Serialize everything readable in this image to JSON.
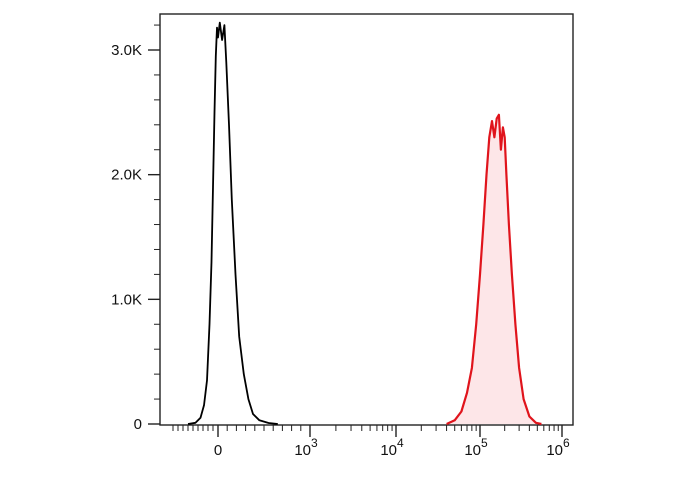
{
  "chart_data": {
    "type": "area",
    "title": "",
    "xlabel": "",
    "ylabel": "",
    "x_scale": "biexponential",
    "xlim": [
      -1000,
      1000000
    ],
    "ylim": [
      0,
      3300
    ],
    "grid": false,
    "y_ticks": [
      {
        "value": 0,
        "label": "0"
      },
      {
        "value": 1000,
        "label": "1.0K"
      },
      {
        "value": 2000,
        "label": "2.0K"
      },
      {
        "value": 3000,
        "label": "3.0K"
      }
    ],
    "x_ticks": [
      {
        "value": 0,
        "label": "0",
        "exp": ""
      },
      {
        "value": 1000,
        "label": "10",
        "exp": "3"
      },
      {
        "value": 10000,
        "label": "10",
        "exp": "4"
      },
      {
        "value": 100000,
        "label": "10",
        "exp": "5"
      },
      {
        "value": 1000000,
        "label": "10",
        "exp": "6"
      }
    ],
    "series": [
      {
        "color": "#000000",
        "fill": "none",
        "points": [
          [
            -600,
            0
          ],
          [
            -450,
            10
          ],
          [
            -350,
            50
          ],
          [
            -280,
            150
          ],
          [
            -220,
            350
          ],
          [
            -170,
            800
          ],
          [
            -130,
            1300
          ],
          [
            -100,
            1900
          ],
          [
            -70,
            2500
          ],
          [
            -45,
            2950
          ],
          [
            -20,
            3180
          ],
          [
            0,
            3100
          ],
          [
            20,
            3220
          ],
          [
            45,
            3080
          ],
          [
            70,
            3200
          ],
          [
            90,
            2900
          ],
          [
            120,
            2400
          ],
          [
            150,
            1800
          ],
          [
            190,
            1200
          ],
          [
            230,
            700
          ],
          [
            280,
            400
          ],
          [
            330,
            200
          ],
          [
            380,
            80
          ],
          [
            450,
            30
          ],
          [
            550,
            8
          ],
          [
            650,
            0
          ]
        ]
      },
      {
        "color": "#e0141c",
        "fill": "#fde6e8",
        "points": [
          [
            40000,
            0
          ],
          [
            50000,
            30
          ],
          [
            60000,
            100
          ],
          [
            70000,
            250
          ],
          [
            80000,
            450
          ],
          [
            90000,
            800
          ],
          [
            100000,
            1200
          ],
          [
            110000,
            1600
          ],
          [
            120000,
            2000
          ],
          [
            130000,
            2300
          ],
          [
            140000,
            2430
          ],
          [
            150000,
            2300
          ],
          [
            160000,
            2450
          ],
          [
            170000,
            2480
          ],
          [
            180000,
            2200
          ],
          [
            190000,
            2380
          ],
          [
            200000,
            2300
          ],
          [
            210000,
            2000
          ],
          [
            225000,
            1600
          ],
          [
            245000,
            1200
          ],
          [
            270000,
            800
          ],
          [
            300000,
            450
          ],
          [
            340000,
            200
          ],
          [
            400000,
            60
          ],
          [
            480000,
            10
          ],
          [
            560000,
            0
          ]
        ]
      }
    ]
  }
}
